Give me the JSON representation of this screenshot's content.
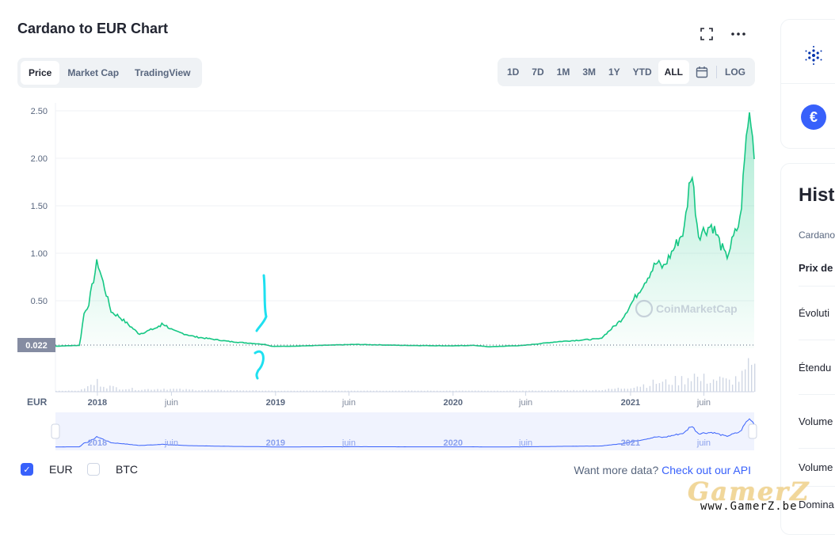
{
  "title": "Cardano to EUR Chart",
  "header_icons": [
    "fullscreen-icon",
    "more-icon"
  ],
  "tabs": [
    {
      "label": "Price",
      "active": true
    },
    {
      "label": "Market Cap",
      "active": false
    },
    {
      "label": "TradingView",
      "active": false
    }
  ],
  "ranges": [
    {
      "label": "1D"
    },
    {
      "label": "7D"
    },
    {
      "label": "1M"
    },
    {
      "label": "3M"
    },
    {
      "label": "1Y"
    },
    {
      "label": "YTD"
    },
    {
      "label": "ALL",
      "active": true
    }
  ],
  "calendar_icon": "calendar-icon",
  "log_label": "LOG",
  "currency_label": "EUR",
  "current_price_label": "0.022",
  "watermark_text": "CoinMarketCap",
  "chart_data": {
    "type": "area",
    "title": "Cardano to EUR Chart",
    "series_name": "EUR",
    "y_ticks": [
      "2.50",
      "2.00",
      "1.50",
      "1.00",
      "0.50"
    ],
    "ylim": [
      0,
      2.5
    ],
    "x_ticks": [
      "2018",
      "juin",
      "2019",
      "juin",
      "2020",
      "juin",
      "2021",
      "juin"
    ],
    "x_ticks_major": [
      true,
      false,
      true,
      false,
      true,
      false,
      true,
      false
    ],
    "price_points": [
      [
        0,
        0.022
      ],
      [
        0.035,
        0.03
      ],
      [
        0.04,
        0.35
      ],
      [
        0.047,
        0.45
      ],
      [
        0.06,
        0.92
      ],
      [
        0.066,
        0.75
      ],
      [
        0.08,
        0.38
      ],
      [
        0.09,
        0.34
      ],
      [
        0.12,
        0.15
      ],
      [
        0.15,
        0.23
      ],
      [
        0.145,
        0.3
      ],
      [
        0.17,
        0.18
      ],
      [
        0.2,
        0.12
      ],
      [
        0.25,
        0.07
      ],
      [
        0.3,
        0.04
      ],
      [
        0.31,
        0.02
      ],
      [
        0.33,
        0.02
      ],
      [
        0.38,
        0.03
      ],
      [
        0.43,
        0.04
      ],
      [
        0.5,
        0.03
      ],
      [
        0.57,
        0.025
      ],
      [
        0.6,
        0.03
      ],
      [
        0.62,
        0.015
      ],
      [
        0.67,
        0.03
      ],
      [
        0.72,
        0.07
      ],
      [
        0.78,
        0.1
      ],
      [
        0.81,
        0.3
      ],
      [
        0.835,
        0.6
      ],
      [
        0.86,
        0.9
      ],
      [
        0.87,
        0.85
      ],
      [
        0.9,
        1.25
      ],
      [
        0.91,
        1.9
      ],
      [
        0.92,
        1.2
      ],
      [
        0.94,
        1.3
      ],
      [
        0.96,
        0.95
      ],
      [
        0.98,
        1.35
      ],
      [
        0.99,
        2.35
      ],
      [
        0.995,
        2.5
      ],
      [
        1.0,
        2.02
      ]
    ],
    "grid": true,
    "legend_position": "bottom-left"
  },
  "legend": [
    {
      "label": "EUR",
      "checked": true
    },
    {
      "label": "BTC",
      "checked": false
    }
  ],
  "more_data": {
    "prefix": "Want more data?",
    "link": "Check out our API"
  },
  "side_panel": {
    "history_title": "Hist",
    "rows": [
      "Cardano",
      "Prix de",
      "Évoluti",
      "Étendu",
      "Volume",
      "Volume",
      "Domina"
    ]
  },
  "brand_watermark": {
    "line1": "GamerZ",
    "line2": "www.GamerZ.be"
  },
  "colors": {
    "line": "#16c784",
    "accent": "#3861fb",
    "nav": "#8aa0ed"
  }
}
